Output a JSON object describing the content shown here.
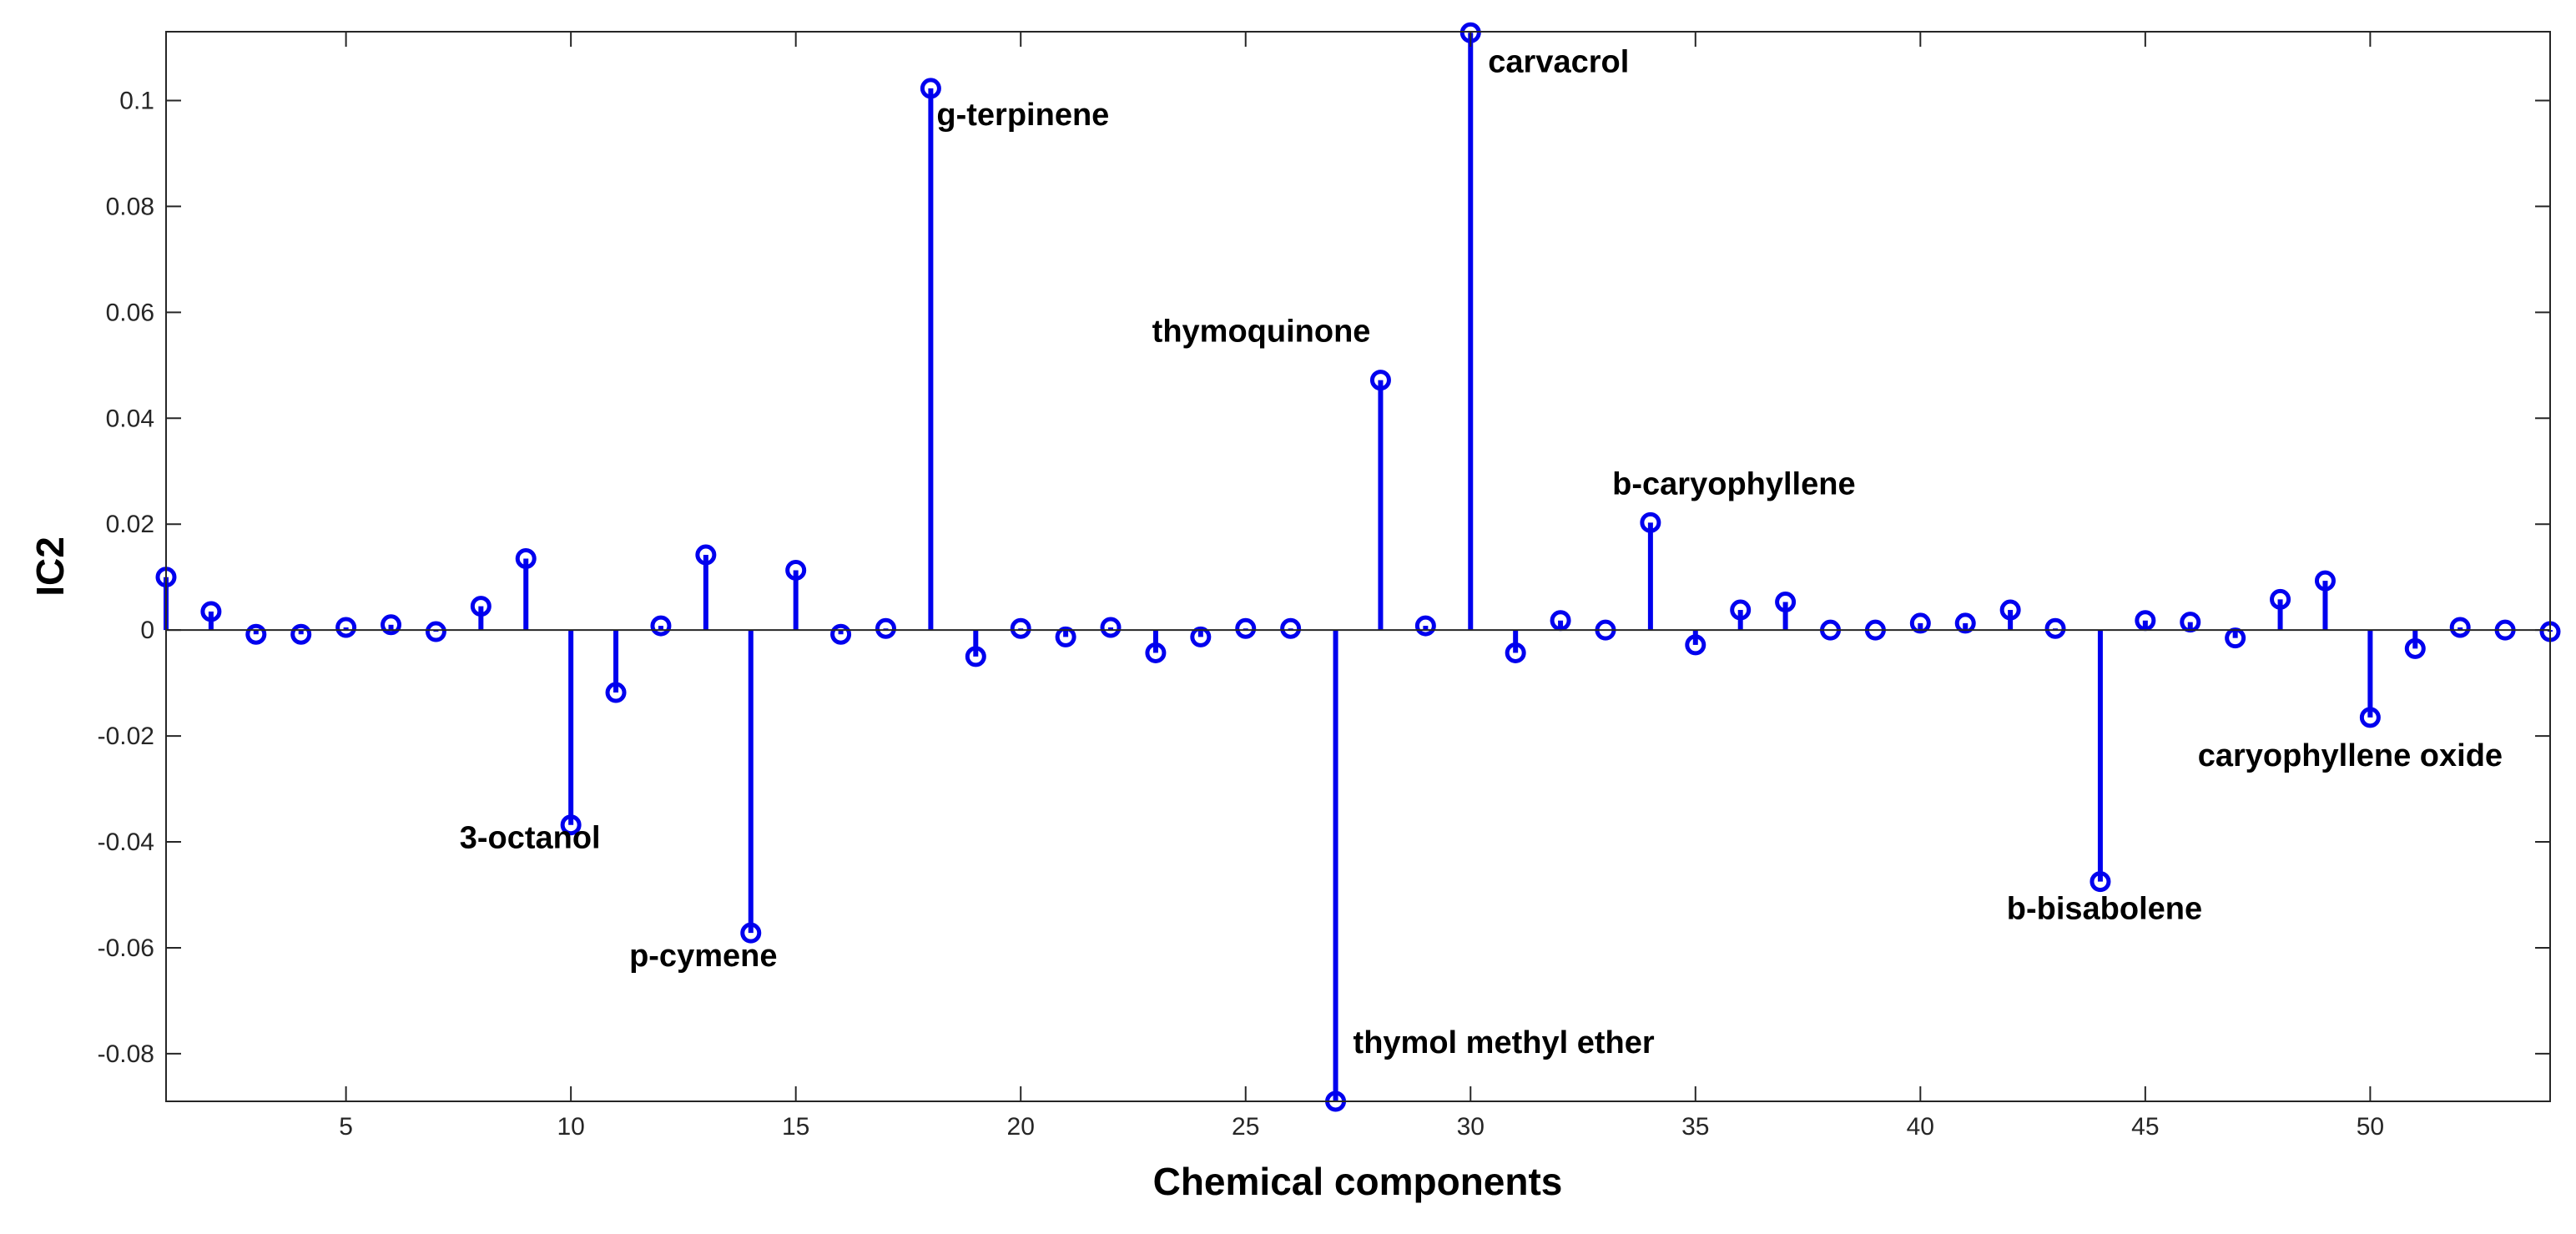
{
  "chart_data": {
    "type": "stem",
    "title": "",
    "xlabel": "Chemical components",
    "ylabel": "IC2",
    "xlim": [
      1,
      54
    ],
    "ylim": [
      -0.089,
      0.113
    ],
    "xticks": [
      5,
      10,
      15,
      20,
      25,
      30,
      35,
      40,
      45,
      50
    ],
    "yticks": [
      -0.08,
      -0.06,
      -0.04,
      -0.02,
      0,
      0.02,
      0.04,
      0.06,
      0.08,
      0.1
    ],
    "ytick_labels": [
      "-0.08",
      "-0.06",
      "-0.04",
      "-0.02",
      "0",
      "0.02",
      "0.04",
      "0.06",
      "0.08",
      "0.1"
    ],
    "grid": false,
    "color": "#0000ee",
    "x": [
      1,
      2,
      3,
      4,
      5,
      6,
      7,
      8,
      9,
      10,
      11,
      12,
      13,
      14,
      15,
      16,
      17,
      18,
      19,
      20,
      21,
      22,
      23,
      24,
      25,
      26,
      27,
      28,
      29,
      30,
      31,
      32,
      33,
      34,
      35,
      36,
      37,
      38,
      39,
      40,
      41,
      42,
      43,
      44,
      45,
      46,
      47,
      48,
      49,
      50,
      51,
      52,
      53,
      54
    ],
    "values": [
      0.01,
      0.0035,
      -0.0008,
      -0.0008,
      0.0005,
      0.001,
      -0.0003,
      0.0045,
      0.0135,
      -0.0368,
      -0.0118,
      0.0008,
      0.0142,
      -0.0572,
      0.0113,
      -0.0008,
      0.0003,
      0.1023,
      -0.005,
      0.0003,
      -0.0013,
      0.0005,
      -0.0043,
      -0.0013,
      0.0003,
      0.0003,
      -0.089,
      0.0472,
      0.0008,
      0.1128,
      -0.0043,
      0.0018,
      0.0,
      0.0203,
      -0.0028,
      0.0038,
      0.0053,
      0.0,
      0.0,
      0.0013,
      0.0013,
      0.0038,
      0.0003,
      -0.0475,
      0.0018,
      0.0015,
      -0.0015,
      0.0058,
      0.0093,
      -0.0165,
      -0.0035,
      0.0005,
      0.0,
      -0.0003
    ],
    "annotations": [
      {
        "x": 10,
        "y": -0.0368,
        "text": "3-octanol"
      },
      {
        "x": 14,
        "y": -0.0572,
        "text": "p-cymene"
      },
      {
        "x": 18,
        "y": 0.1023,
        "text": "g-terpinene"
      },
      {
        "x": 27,
        "y": -0.089,
        "text": "thymol methyl ether"
      },
      {
        "x": 28,
        "y": 0.0472,
        "text": "thymoquinone"
      },
      {
        "x": 30,
        "y": 0.1128,
        "text": "carvacrol"
      },
      {
        "x": 34,
        "y": 0.0203,
        "text": "b-caryophyllene"
      },
      {
        "x": 44,
        "y": -0.0475,
        "text": "b-bisabolene"
      },
      {
        "x": 50,
        "y": -0.0165,
        "text": "caryophyllene oxide"
      }
    ]
  }
}
